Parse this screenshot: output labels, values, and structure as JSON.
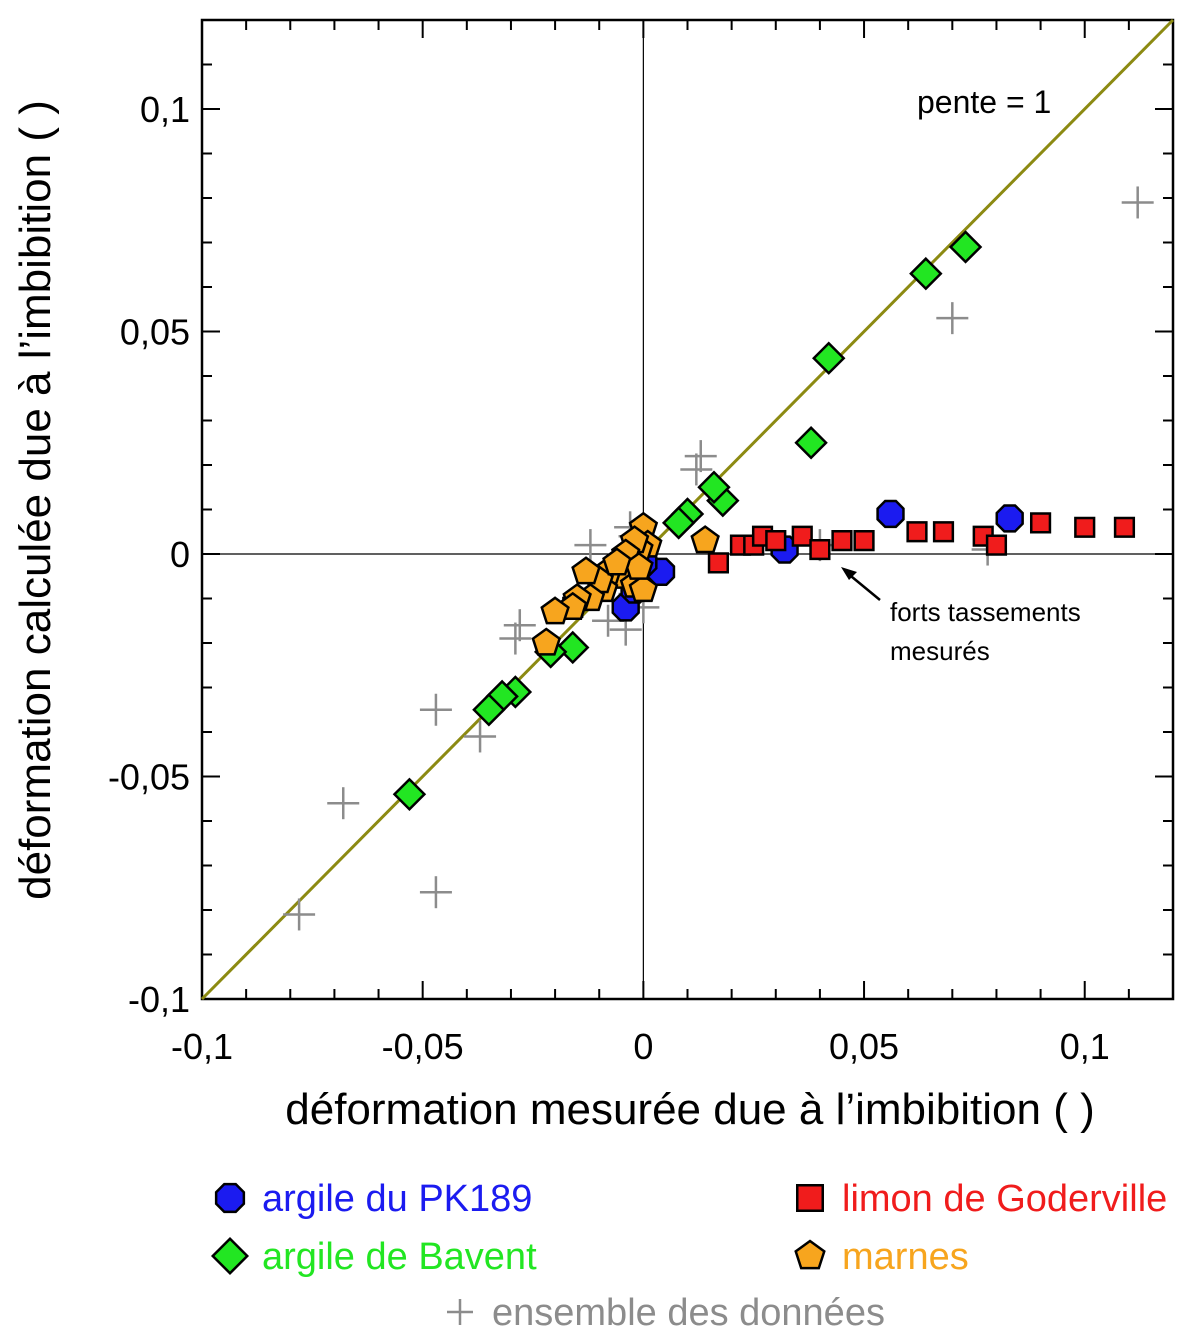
{
  "chart_data": {
    "type": "scatter",
    "title": "",
    "xlabel": "déformation mesurée due à l’imbibition ( )",
    "ylabel": "déformation calculée due à l’imbibition ( )",
    "xlim": [
      -0.1,
      0.12
    ],
    "ylim": [
      -0.1,
      0.12
    ],
    "x_ticks": [
      -0.1,
      -0.05,
      0,
      0.05,
      0.1
    ],
    "y_ticks": [
      -0.1,
      -0.05,
      0,
      0.05,
      0.1
    ],
    "x_tick_labels": [
      "-0,1",
      "-0,05",
      "0",
      "0,05",
      "0,1"
    ],
    "y_tick_labels": [
      "-0,1",
      "-0,05",
      "0",
      "0,05",
      "0,1"
    ],
    "grid": false,
    "legend_position": "bottom",
    "reference_line": {
      "label": "pente = 1",
      "slope": 1,
      "color": "#8c8a12"
    },
    "annotation": {
      "lines": [
        "forts tassements",
        "mesurés"
      ],
      "arrow_to": [
        0.044,
        -0.002
      ]
    },
    "series": [
      {
        "name": "ensemble des données",
        "marker": "plus",
        "color": "#8c8c8c",
        "x": [
          0.112,
          0.07,
          0.013,
          0.012,
          -0.008,
          -0.004,
          -0.012,
          -0.003,
          -0.028,
          -0.029,
          -0.047,
          -0.037,
          -0.068,
          -0.047,
          -0.078,
          -0.002,
          -0.002,
          0.0,
          0.04,
          0.078
        ],
        "y": [
          0.079,
          0.053,
          0.022,
          0.019,
          -0.015,
          -0.017,
          0.002,
          0.006,
          -0.016,
          -0.019,
          -0.035,
          -0.041,
          -0.056,
          -0.076,
          -0.081,
          0.004,
          -0.009,
          -0.012,
          0.002,
          0.001
        ]
      },
      {
        "name": "argile du PK189",
        "marker": "octagon",
        "color": "#1b1bf0",
        "x": [
          0.056,
          0.083,
          0.032,
          0.004,
          -0.004,
          -0.002,
          0.0
        ],
        "y": [
          0.009,
          0.008,
          0.001,
          -0.004,
          -0.012,
          -0.008,
          -0.002
        ]
      },
      {
        "name": "limon de Goderville",
        "marker": "square",
        "color": "#f01c1c",
        "x": [
          0.017,
          0.022,
          0.025,
          0.027,
          0.03,
          0.036,
          0.04,
          0.045,
          0.05,
          0.062,
          0.068,
          0.077,
          0.08,
          0.09,
          0.1,
          0.109,
          -0.016
        ],
        "y": [
          -0.002,
          0.002,
          0.002,
          0.004,
          0.003,
          0.004,
          0.001,
          0.003,
          0.003,
          0.005,
          0.005,
          0.004,
          0.002,
          0.007,
          0.006,
          0.006,
          -0.012
        ]
      },
      {
        "name": "argile de Bavent",
        "marker": "diamond",
        "color": "#22e622",
        "x": [
          0.073,
          0.064,
          0.042,
          0.038,
          0.018,
          0.016,
          0.01,
          0.008,
          -0.016,
          -0.021,
          -0.029,
          -0.032,
          -0.035,
          -0.053
        ],
        "y": [
          0.069,
          0.063,
          0.044,
          0.025,
          0.012,
          0.015,
          0.009,
          0.007,
          -0.021,
          -0.022,
          -0.031,
          -0.032,
          -0.035,
          -0.054
        ]
      },
      {
        "name": "marnes",
        "marker": "pentagon",
        "color": "#f7a51e",
        "x": [
          0.014,
          0.0,
          0.001,
          -0.001,
          -0.002,
          -0.003,
          -0.004,
          -0.005,
          -0.006,
          -0.008,
          -0.009,
          -0.01,
          -0.012,
          -0.013,
          -0.015,
          -0.016,
          -0.02,
          -0.022,
          -0.002,
          0.0,
          -0.001,
          -0.006
        ],
        "y": [
          0.003,
          0.006,
          0.002,
          0.001,
          0.003,
          -0.002,
          0.0,
          -0.003,
          -0.005,
          -0.004,
          -0.008,
          -0.006,
          -0.01,
          -0.004,
          -0.01,
          -0.012,
          -0.013,
          -0.02,
          -0.007,
          -0.008,
          -0.003,
          -0.002
        ]
      }
    ]
  },
  "legend": {
    "entries": [
      {
        "label": "argile du PK189",
        "marker": "octagon",
        "color": "#1b1bf0",
        "text_color": "#1b1bf0"
      },
      {
        "label": "limon de Goderville",
        "marker": "square",
        "color": "#f01c1c",
        "text_color": "#f01c1c"
      },
      {
        "label": "argile de Bavent",
        "marker": "diamond",
        "color": "#22e622",
        "text_color": "#22e622"
      },
      {
        "label": "marnes",
        "marker": "pentagon",
        "color": "#f7a51e",
        "text_color": "#f7a51e"
      },
      {
        "label": "ensemble des données",
        "marker": "plus",
        "color": "#8c8c8c",
        "text_color": "#8c8c8c"
      }
    ]
  }
}
